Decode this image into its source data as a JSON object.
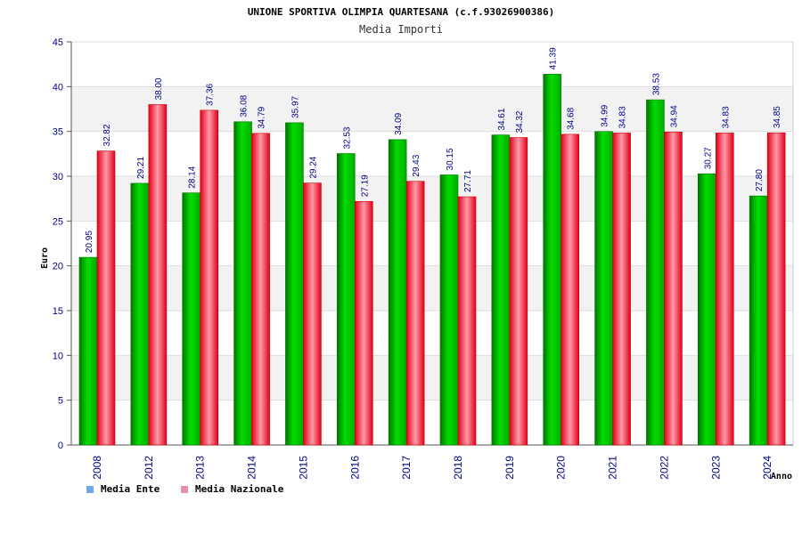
{
  "chart_data": {
    "type": "bar",
    "title": "UNIONE SPORTIVA OLIMPIA QUARTESANA (c.f.93026900386)",
    "subtitle": "Media Importi",
    "xlabel": "Anno",
    "ylabel": "Euro",
    "ylim": [
      0,
      45
    ],
    "yticks": [
      0,
      5,
      10,
      15,
      20,
      25,
      30,
      35,
      40,
      45
    ],
    "grid": true,
    "legend_position": "bottom-left",
    "categories": [
      "2008",
      "2012",
      "2013",
      "2014",
      "2015",
      "2016",
      "2017",
      "2018",
      "2019",
      "2020",
      "2021",
      "2022",
      "2023",
      "2024"
    ],
    "series": [
      {
        "name": "Media Ente",
        "color": "#00bb00",
        "legend_color": "#6fa8e8",
        "values": [
          20.95,
          29.21,
          28.14,
          36.08,
          35.97,
          32.53,
          34.09,
          30.15,
          34.61,
          41.39,
          34.99,
          38.53,
          30.27,
          27.8
        ],
        "labels": [
          "20.95",
          "29.21",
          "28.14",
          "36.08",
          "35.97",
          "32.53",
          "34.09",
          "30.15",
          "34.61",
          "41.39",
          "34.99",
          "38.53",
          "30.27",
          "27.80"
        ]
      },
      {
        "name": "Media Nazionale",
        "color": "#ee2233",
        "legend_color": "#e38fb0",
        "values": [
          32.82,
          38.0,
          37.36,
          34.79,
          29.24,
          27.19,
          29.43,
          27.71,
          34.32,
          34.68,
          34.83,
          34.94,
          34.83,
          34.85
        ],
        "labels": [
          "32.82",
          "38.00",
          "37.36",
          "34.79",
          "29.24",
          "27.19",
          "29.43",
          "27.71",
          "34.32",
          "34.68",
          "34.83",
          "34.94",
          "34.83",
          "34.85"
        ]
      }
    ]
  }
}
